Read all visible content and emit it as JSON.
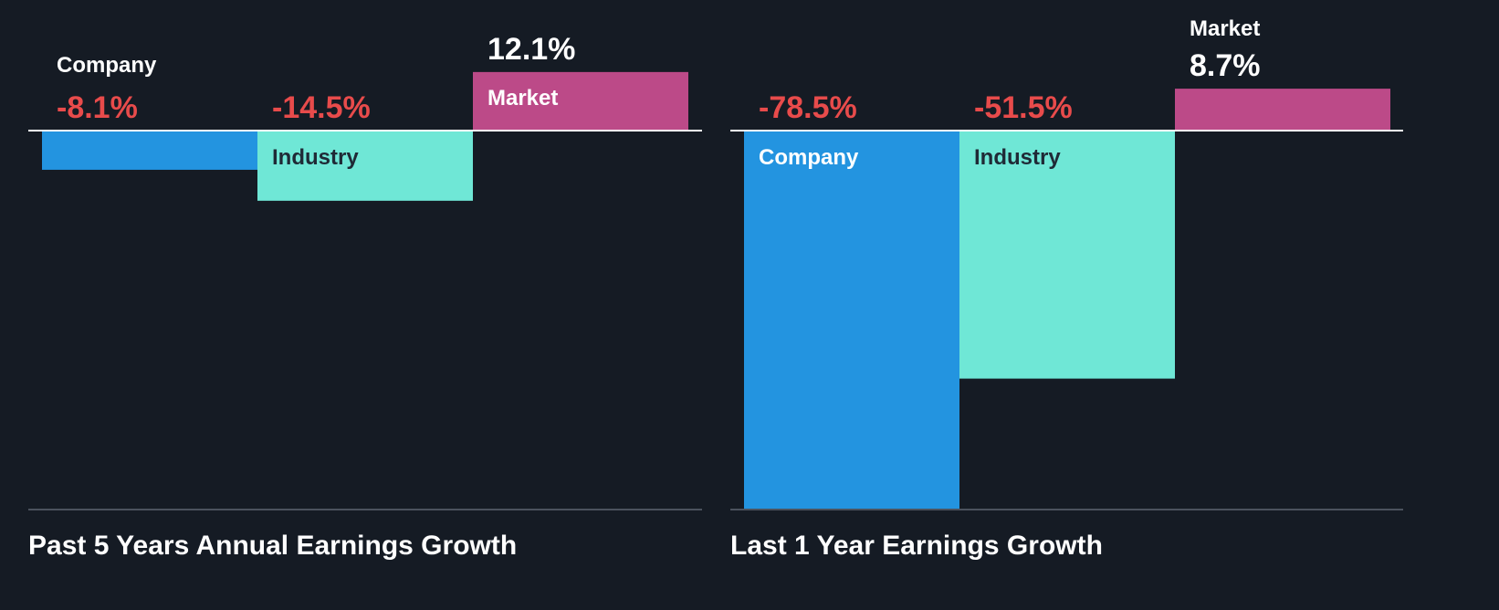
{
  "colors": {
    "background": "#151b24",
    "company": "#2394e0",
    "industry": "#6fe7d6",
    "market": "#bc4a88",
    "negative_text": "#e84b4b",
    "positive_text": "#ffffff",
    "axis_line": "#ffffff",
    "baseline": "#4b525d",
    "title_text": "#ffffff",
    "label_on_dark": "#ffffff",
    "label_on_light": "#1f2a36"
  },
  "chart_data": [
    {
      "type": "bar",
      "title": "Past 5 Years Annual Earnings Growth",
      "unit": "%",
      "categories": [
        "Company",
        "Industry",
        "Market"
      ],
      "values": [
        -8.1,
        -14.5,
        12.1
      ],
      "value_labels": [
        "-8.1%",
        "-14.5%",
        "12.1%"
      ],
      "series_keys": [
        "company",
        "industry",
        "market"
      ]
    },
    {
      "type": "bar",
      "title": "Last 1 Year Earnings Growth",
      "unit": "%",
      "categories": [
        "Company",
        "Industry",
        "Market"
      ],
      "values": [
        -78.5,
        -51.5,
        8.7
      ],
      "value_labels": [
        "-78.5%",
        "-51.5%",
        "8.7%"
      ],
      "series_keys": [
        "company",
        "industry",
        "market"
      ]
    }
  ]
}
